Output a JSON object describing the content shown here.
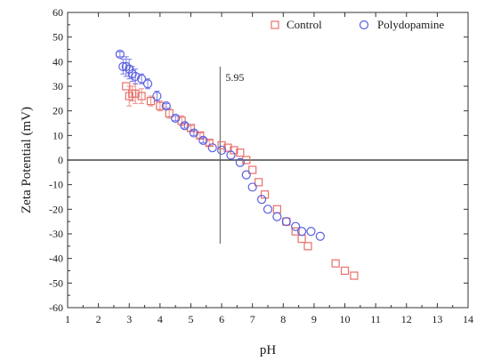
{
  "chart_data": {
    "type": "scatter",
    "xlabel": "pH",
    "ylabel": "Zeta Potential (mV)",
    "xlim": [
      1,
      14
    ],
    "ylim": [
      -60,
      60
    ],
    "x_ticks": [
      "1",
      "2",
      "3",
      "4",
      "5",
      "6",
      "7",
      "8",
      "9",
      "10",
      "11",
      "12",
      "13",
      "14"
    ],
    "y_ticks": [
      "60",
      "50",
      "40",
      "30",
      "20",
      "10",
      "0",
      "-10",
      "-20",
      "-30",
      "-40",
      "-50",
      "-60"
    ],
    "legend_position": "top-right",
    "grid": false,
    "zero_line": true,
    "annotation": {
      "label": "5.95",
      "x": 5.95,
      "y_range": [
        -34,
        38
      ]
    },
    "series": [
      {
        "name": "Control",
        "marker": "square",
        "color": "#e8706a",
        "x": [
          2.9,
          3.0,
          3.1,
          3.2,
          3.4,
          3.7,
          4.0,
          4.3,
          4.7,
          5.0,
          5.3,
          5.6,
          6.0,
          6.2,
          6.4,
          6.6,
          6.8,
          7.0,
          7.2,
          7.4,
          7.8,
          8.1,
          8.4,
          8.6,
          8.8,
          9.7,
          10.0,
          10.3
        ],
        "y": [
          30,
          26,
          27,
          27,
          26,
          24,
          22,
          19,
          16,
          13,
          10,
          7,
          6,
          5,
          4,
          3,
          0,
          -4,
          -9,
          -14,
          -20,
          -25,
          -29,
          -32,
          -35,
          -42,
          -45,
          -47
        ],
        "err": [
          0,
          4,
          3,
          4,
          3,
          2,
          2,
          2,
          2,
          1,
          1,
          1,
          0,
          0,
          0,
          0,
          0,
          0,
          0,
          0,
          0,
          0,
          0,
          0,
          0,
          0,
          0,
          0
        ]
      },
      {
        "name": "Polydopamine",
        "marker": "circle",
        "color": "#5a5ee0",
        "x": [
          2.7,
          2.8,
          2.9,
          3.0,
          3.1,
          3.2,
          3.4,
          3.6,
          3.9,
          4.2,
          4.5,
          4.8,
          5.1,
          5.4,
          5.7,
          6.0,
          6.3,
          6.6,
          6.8,
          7.0,
          7.3,
          7.5,
          7.8,
          8.1,
          8.4,
          8.6,
          8.9,
          9.2
        ],
        "y": [
          43,
          38,
          38,
          37,
          35,
          34,
          33,
          31,
          26,
          22,
          17,
          14,
          11,
          8,
          5,
          4,
          2,
          -1,
          -6,
          -11,
          -16,
          -20,
          -23,
          -25,
          -27,
          -29,
          -29,
          -31
        ],
        "err": [
          1,
          3,
          4,
          4,
          3,
          3,
          2,
          2,
          2,
          1,
          1,
          1,
          1,
          1,
          0,
          0,
          0,
          0,
          0,
          0,
          0,
          0,
          0,
          0,
          0,
          0,
          0,
          0
        ]
      }
    ]
  }
}
